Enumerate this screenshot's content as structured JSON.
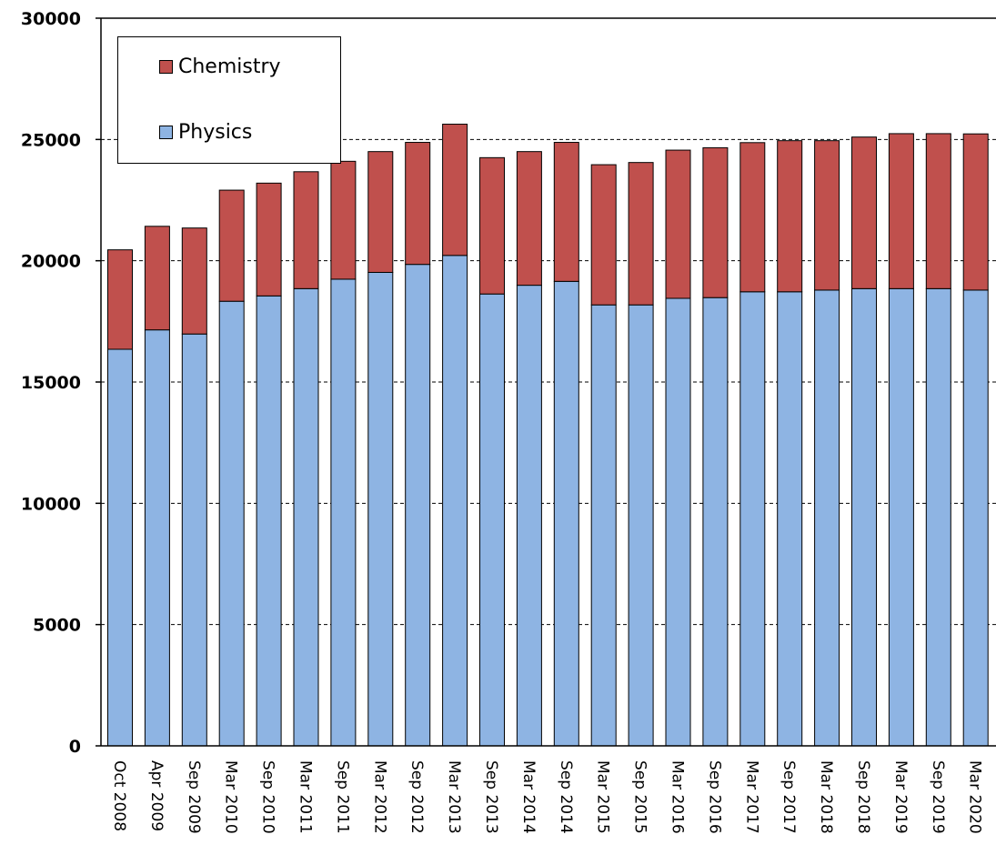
{
  "chart_data": {
    "type": "bar",
    "stacked": true,
    "categories": [
      "Oct 2008",
      "Apr 2009",
      "Sep 2009",
      "Mar 2010",
      "Sep 2010",
      "Mar 2011",
      "Sep 2011",
      "Mar 2012",
      "Sep 2012",
      "Mar 2013",
      "Sep 2013",
      "Mar 2014",
      "Sep 2014",
      "Mar 2015",
      "Sep 2015",
      "Mar 2016",
      "Sep 2016",
      "Mar 2017",
      "Sep 2017",
      "Mar 2018",
      "Sep 2018",
      "Mar 2019",
      "Sep 2019",
      "Mar 2020"
    ],
    "series": [
      {
        "name": "Physics",
        "color": "#8eb4e3",
        "values": [
          16350,
          17150,
          16980,
          18330,
          18550,
          18850,
          19240,
          19520,
          19850,
          20220,
          18630,
          18990,
          19150,
          18180,
          18180,
          18450,
          18480,
          18720,
          18720,
          18790,
          18850,
          18850,
          18850,
          18790
        ]
      },
      {
        "name": "Chemistry",
        "color": "#c0504d",
        "values": [
          4100,
          4270,
          4370,
          4580,
          4650,
          4820,
          4860,
          4980,
          5030,
          5410,
          5620,
          5510,
          5730,
          5780,
          5870,
          6110,
          6180,
          6150,
          6230,
          6160,
          6250,
          6390,
          6390,
          6440
        ]
      }
    ],
    "ylim": [
      0,
      30000
    ],
    "yticks": [
      "0",
      "5000",
      "10000",
      "15000",
      "20000",
      "25000",
      "30000"
    ],
    "gridlines": "dashed",
    "legend_position": "top-left",
    "title": "",
    "xlabel": "",
    "ylabel": ""
  }
}
